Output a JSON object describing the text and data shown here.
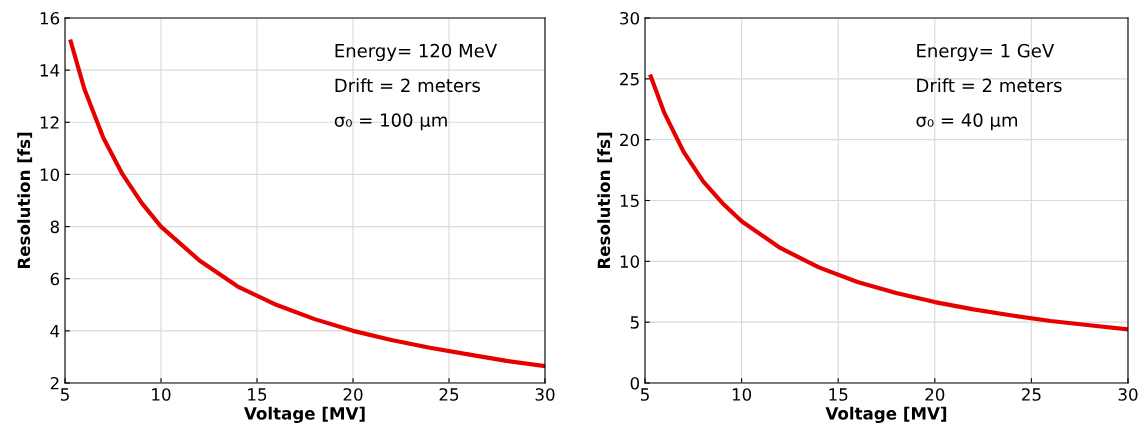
{
  "chart_data": [
    {
      "type": "line",
      "xlabel": "Voltage [MV]",
      "ylabel": "Resolution [fs]",
      "xlim": [
        5,
        30
      ],
      "xticks": [
        5,
        10,
        15,
        20,
        25,
        30
      ],
      "ylim": [
        2,
        16
      ],
      "yticks": [
        2,
        4,
        6,
        8,
        10,
        12,
        14,
        16
      ],
      "grid": true,
      "annotations": [
        "Energy= 120 MeV",
        "Drift = 2 meters",
        "σ₀ = 100 μm"
      ],
      "series": [
        {
          "color": "#e60000",
          "x": [
            5.3,
            6,
            7,
            8,
            9,
            10,
            12,
            14,
            16,
            18,
            20,
            22,
            24,
            26,
            28,
            30
          ],
          "values": [
            15.1,
            13.3,
            11.4,
            10.0,
            8.9,
            8.0,
            6.7,
            5.7,
            5.0,
            4.45,
            4.0,
            3.65,
            3.35,
            3.1,
            2.85,
            2.65
          ]
        }
      ]
    },
    {
      "type": "line",
      "xlabel": "Voltage [MV]",
      "ylabel": "Resolution [fs]",
      "xlim": [
        5,
        30
      ],
      "xticks": [
        5,
        10,
        15,
        20,
        25,
        30
      ],
      "ylim": [
        0,
        30
      ],
      "yticks": [
        0,
        5,
        10,
        15,
        20,
        25,
        30
      ],
      "grid": true,
      "annotations": [
        "Energy= 1 GeV",
        "Drift = 2 meters",
        "σ₀ = 40 μm"
      ],
      "series": [
        {
          "color": "#e60000",
          "x": [
            5.3,
            6,
            7,
            8,
            9,
            10,
            12,
            14,
            16,
            18,
            20,
            22,
            24,
            26,
            28,
            30
          ],
          "values": [
            25.2,
            22.2,
            19.0,
            16.6,
            14.8,
            13.3,
            11.1,
            9.5,
            8.3,
            7.4,
            6.65,
            6.05,
            5.55,
            5.1,
            4.75,
            4.4
          ]
        }
      ]
    }
  ]
}
